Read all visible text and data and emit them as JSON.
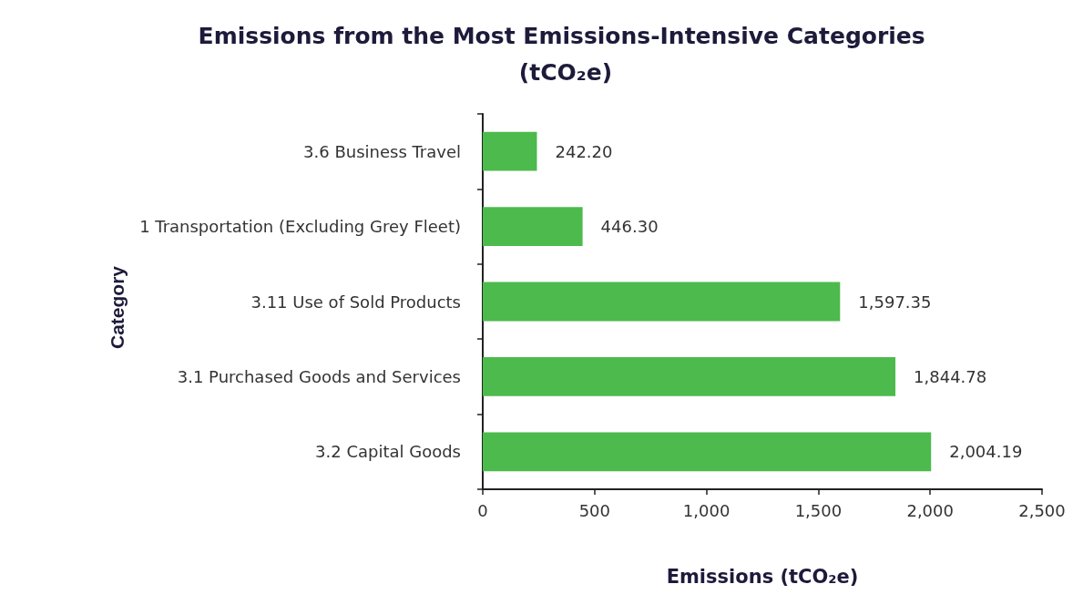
{
  "chart_data": {
    "type": "bar",
    "orientation": "horizontal",
    "title": "Emissions from the Most Emissions-Intensive Categories (tCO₂e)",
    "xlabel": "Emissions (tCO₂e)",
    "ylabel": "Category",
    "categories": [
      "3.6 Business Travel",
      "1 Transportation (Excluding Grey Fleet)",
      "3.11 Use of Sold Products",
      "3.1 Purchased Goods and Services",
      "3.2 Capital Goods"
    ],
    "values": [
      242.2,
      446.3,
      1597.35,
      1844.78,
      2004.19
    ],
    "value_labels": [
      "242.20",
      "446.30",
      "1,597.35",
      "1,844.78",
      "2,004.19"
    ],
    "color": "#4cba4c",
    "xlim": [
      0,
      2500
    ],
    "xticks": [
      0,
      500,
      {
        "value": 1000,
        "label": "1,000"
      },
      {
        "value": 1500,
        "label": "1,500"
      },
      {
        "value": 2000,
        "label": "2,000"
      },
      {
        "value": 2500,
        "label": "2,500"
      }
    ],
    "grid": false
  }
}
